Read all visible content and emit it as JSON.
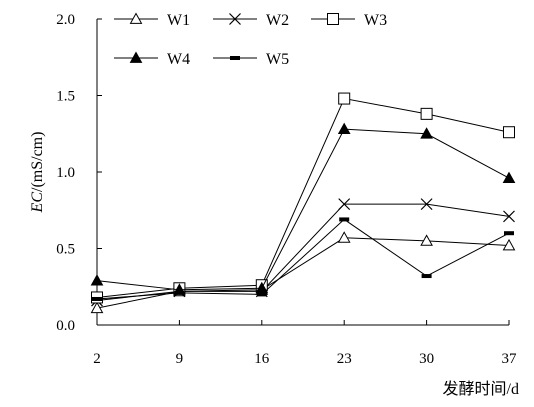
{
  "chart_data": {
    "type": "line",
    "title": "",
    "xlabel": "发酵时间/d",
    "ylabel_italic": "EC",
    "ylabel_rest": "/(mS/cm)",
    "categories": [
      "2",
      "9",
      "16",
      "23",
      "30",
      "37"
    ],
    "yticks": [
      "0.0",
      "0.5",
      "1.0",
      "1.5",
      "2.0"
    ],
    "ylim": [
      0,
      2.0
    ],
    "grid": false,
    "legend_position": "top",
    "series": [
      {
        "name": "W1",
        "marker": "triangle-open",
        "values": [
          0.11,
          0.22,
          0.23,
          0.57,
          0.55,
          0.52
        ]
      },
      {
        "name": "W2",
        "marker": "x",
        "values": [
          0.16,
          0.22,
          0.22,
          0.79,
          0.79,
          0.71
        ]
      },
      {
        "name": "W3",
        "marker": "square-open",
        "values": [
          0.18,
          0.24,
          0.26,
          1.48,
          1.38,
          1.26
        ]
      },
      {
        "name": "W4",
        "marker": "triangle-filled",
        "values": [
          0.29,
          0.23,
          0.24,
          1.28,
          1.25,
          0.96
        ]
      },
      {
        "name": "W5",
        "marker": "dash",
        "values": [
          0.17,
          0.21,
          0.2,
          0.69,
          0.32,
          0.6
        ]
      }
    ]
  }
}
